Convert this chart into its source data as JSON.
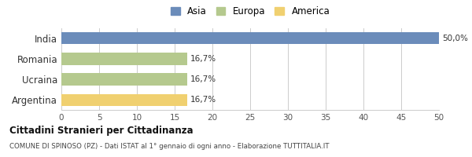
{
  "categories": [
    "Argentina",
    "Ucraina",
    "Romania",
    "India"
  ],
  "values": [
    16.7,
    16.7,
    16.7,
    50.0
  ],
  "bar_colors": [
    "#f0d070",
    "#b5c98e",
    "#b5c98e",
    "#6b8cba"
  ],
  "bar_labels": [
    "16,7%",
    "16,7%",
    "16,7%",
    "50,0%"
  ],
  "legend_labels": [
    "Asia",
    "Europa",
    "America"
  ],
  "legend_colors": [
    "#6b8cba",
    "#b5c98e",
    "#f0d070"
  ],
  "xlim": [
    0,
    50
  ],
  "xticks": [
    0,
    5,
    10,
    15,
    20,
    25,
    30,
    35,
    40,
    45,
    50
  ],
  "title_bold": "Cittadini Stranieri per Cittadinanza",
  "subtitle": "COMUNE DI SPINOSO (PZ) - Dati ISTAT al 1° gennaio di ogni anno - Elaborazione TUTTITALIA.IT",
  "background_color": "#ffffff",
  "grid_color": "#cccccc"
}
